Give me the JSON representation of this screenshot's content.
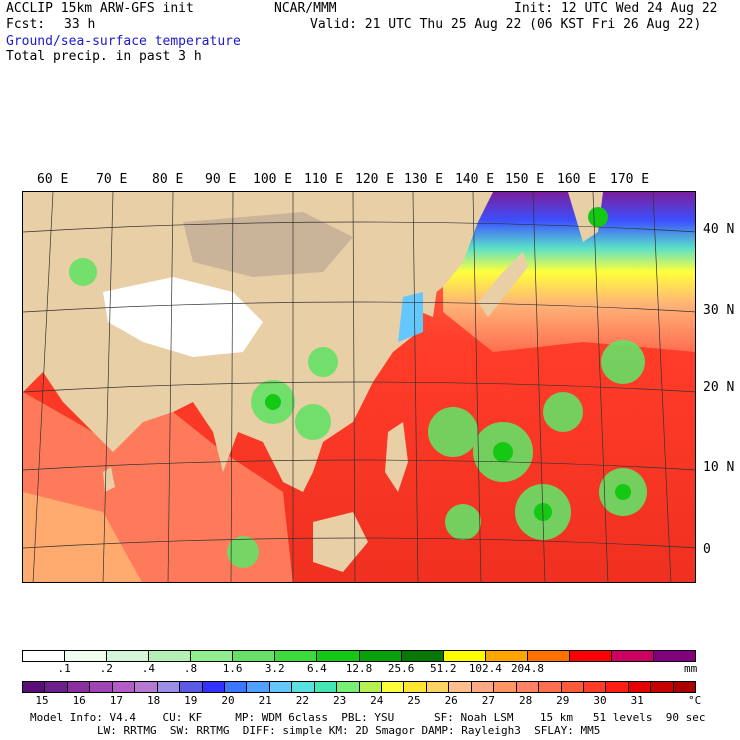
{
  "header": {
    "model": "ACCLIP 15km ARW-GFS init",
    "org": "NCAR/MMM",
    "init": "Init: 12 UTC Wed 24 Aug 22",
    "fcst_label": "Fcst:",
    "fcst_value": "33 h",
    "valid": "Valid: 21 UTC Thu 25 Aug 22 (06 KST Fri 26 Aug 22)",
    "field1": "Ground/sea-surface temperature",
    "field2": "Total precip. in past 3 h"
  },
  "map": {
    "lon_labels": [
      "60 E",
      "70 E",
      "80 E",
      "90 E",
      "100 E",
      "110 E",
      "120 E",
      "130 E",
      "140 E",
      "150 E",
      "160 E",
      "170 E"
    ],
    "lat_labels": [
      "40 N",
      "30 N",
      "20 N",
      "10 N",
      "0"
    ]
  },
  "precip_bar": {
    "colors": [
      "#ffffff",
      "#f0fff0",
      "#d6f5d6",
      "#b4f0b4",
      "#90ee90",
      "#66e066",
      "#3cdc3c",
      "#14c814",
      "#0aa00a",
      "#067806",
      "#ffff00",
      "#ffa500",
      "#ff7000",
      "#ff0000",
      "#cc0060",
      "#800080"
    ],
    "labels": [
      ".1",
      ".2",
      ".4",
      ".8",
      "1.6",
      "3.2",
      "6.4",
      "12.8",
      "25.6",
      "51.2",
      "102.4",
      "204.8"
    ],
    "unit": "mm"
  },
  "temp_bar": {
    "colors": [
      "#5a0f78",
      "#6e1e8c",
      "#8b2ea0",
      "#a044b4",
      "#b45cc8",
      "#b878d2",
      "#9a8ee6",
      "#5a5ae6",
      "#3232ff",
      "#3c78ff",
      "#50a0ff",
      "#64c8ff",
      "#5ae0e0",
      "#46e6b4",
      "#78f078",
      "#b4f050",
      "#ffff3c",
      "#ffe632",
      "#ffd264",
      "#ffbe8c",
      "#ffaa82",
      "#ff9664",
      "#ff8264",
      "#ff6e50",
      "#ff5a3c",
      "#ff3c28",
      "#ff1e14",
      "#e60000",
      "#c80000",
      "#aa0000"
    ],
    "labels": [
      "15",
      "16",
      "17",
      "18",
      "19",
      "20",
      "21",
      "22",
      "23",
      "24",
      "25",
      "26",
      "27",
      "28",
      "29",
      "30",
      "31"
    ],
    "unit": "°C"
  },
  "footer": {
    "line1": "Model Info: V4.4    CU: KF     MP: WDM 6class  PBL: YSU      SF: Noah LSM    15 km   51 levels  90 sec",
    "line2": "LW: RRTMG  SW: RRTMG  DIFF: simple KM: 2D Smagor DAMP: Rayleigh3  SFLAY: MM5"
  }
}
